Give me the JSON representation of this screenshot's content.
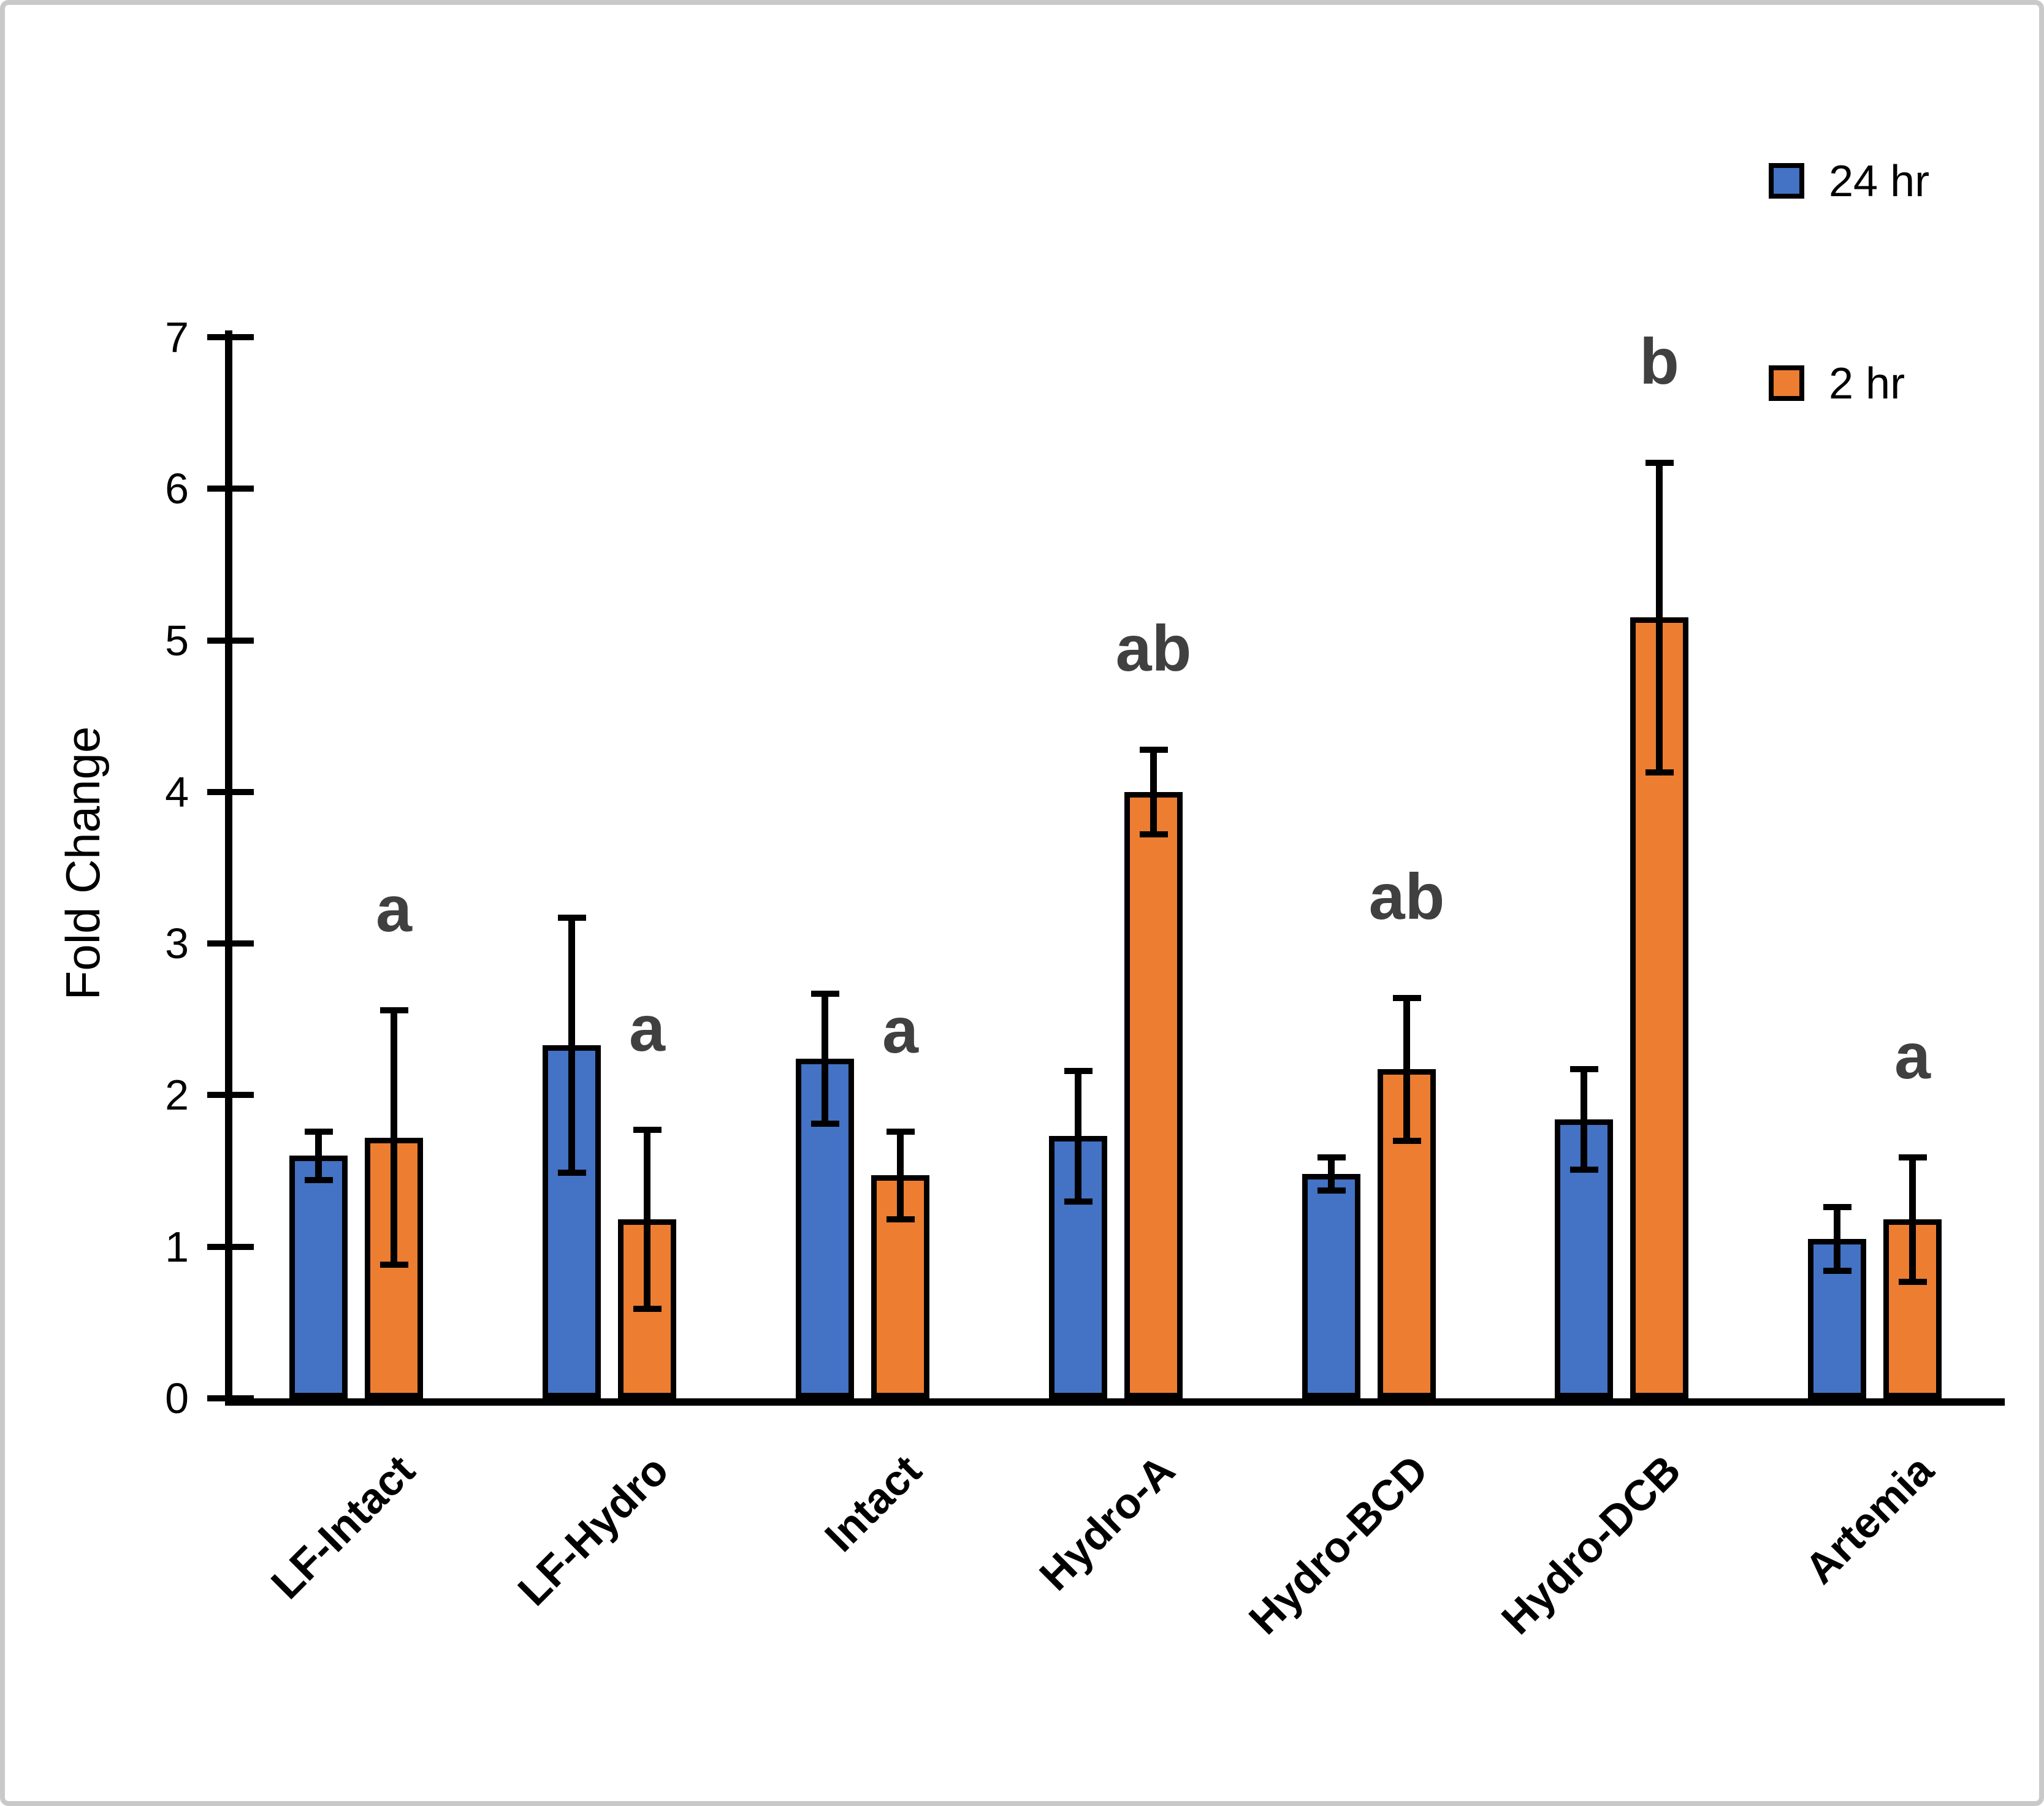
{
  "figure": {
    "ylabel": "Fold Change"
  },
  "chart_data": {
    "type": "bar",
    "title": "",
    "xlabel": "",
    "ylabel": "Fold Change",
    "ylim": [
      0,
      7
    ],
    "yticks": [
      0,
      1,
      2,
      3,
      4,
      5,
      6,
      7
    ],
    "grid": false,
    "legend_position": "top-right",
    "categories": [
      "LF-Intact",
      "LF-Hydro",
      "Intact",
      "Hydro-A",
      "Hydro-BCD",
      "Hydro-DCB",
      "Artemia"
    ],
    "series": [
      {
        "name": "24 hr",
        "color": "#4472C4",
        "values": [
          1.6,
          2.33,
          2.24,
          1.73,
          1.48,
          1.84,
          1.05
        ],
        "errors": [
          0.16,
          0.84,
          0.43,
          0.43,
          0.11,
          0.33,
          0.21
        ]
      },
      {
        "name": "2 hr",
        "color": "#ED7D31",
        "values": [
          1.72,
          1.18,
          1.47,
          4.0,
          2.17,
          5.15,
          1.18
        ],
        "errors": [
          0.84,
          0.59,
          0.29,
          0.28,
          0.47,
          1.02,
          0.41
        ]
      }
    ],
    "significance_letters": {
      "applies_to_series": "2 hr",
      "letters": [
        "a",
        "a",
        "a",
        "ab",
        "ab",
        "b",
        "a"
      ],
      "color": "#404040"
    },
    "bar_border_color": "#000000",
    "error_bar_color": "#000000",
    "axis_color": "#000000"
  }
}
